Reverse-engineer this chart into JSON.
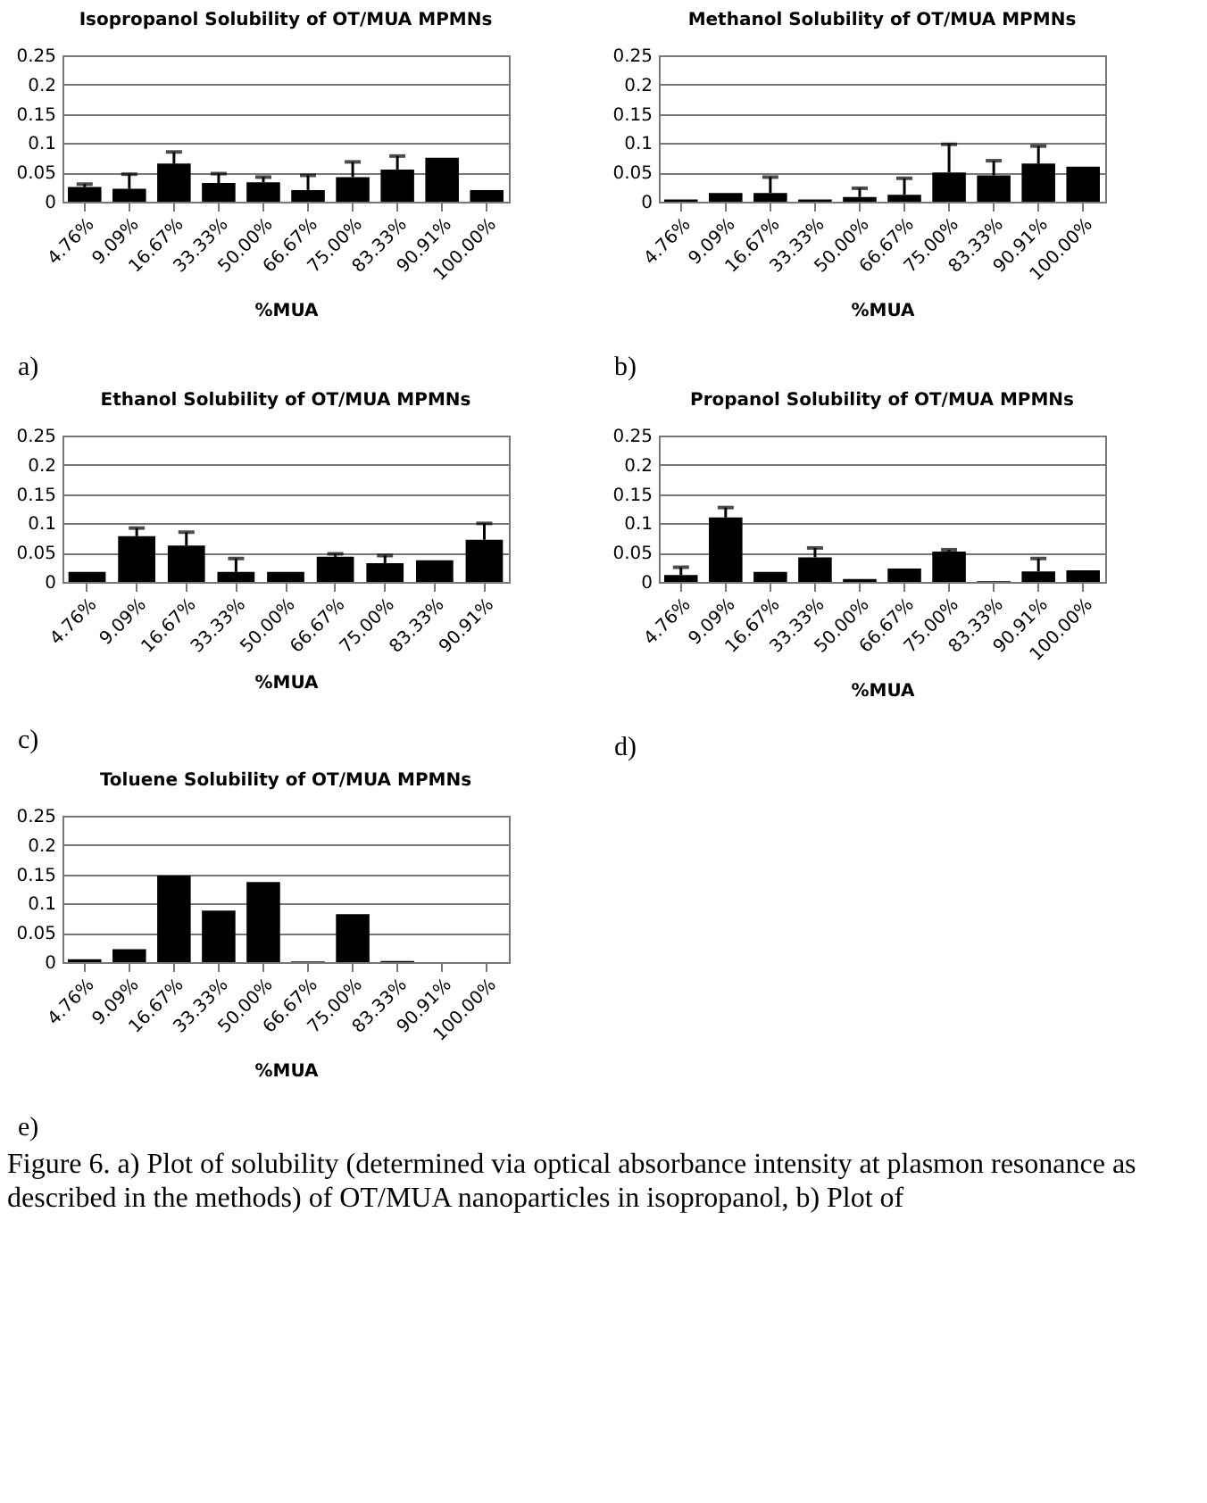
{
  "chart_data": [
    {
      "type": "bar",
      "title": "Isopropanol Solubility of OT/MUA MPMNs",
      "xlabel": "%MUA",
      "categories": [
        "4.76%",
        "9.09%",
        "16.67%",
        "33.33%",
        "50.00%",
        "66.67%",
        "75.00%",
        "83.33%",
        "90.91%",
        "100.00%"
      ],
      "color": "#000000",
      "values": [
        0.025,
        0.022,
        0.065,
        0.032,
        0.033,
        0.02,
        0.042,
        0.055,
        0.075,
        0.02
      ],
      "errors": [
        [
          0.025,
          0.03
        ],
        [
          0.022,
          0.047
        ],
        [
          0.065,
          0.085
        ],
        [
          0.032,
          0.048
        ],
        [
          0.033,
          0.042
        ],
        [
          0.02,
          0.045
        ],
        [
          0.042,
          0.068
        ],
        [
          0.055,
          0.078
        ],
        null,
        null
      ],
      "ylim": [
        0,
        0.25
      ],
      "yticks": [
        0,
        0.05,
        0.1,
        0.15,
        0.2,
        0.25
      ],
      "grid": "y",
      "annotations": [
        "a)"
      ]
    },
    {
      "type": "bar",
      "title": "Methanol Solubility of OT/MUA MPMNs",
      "xlabel": "%MUA",
      "categories": [
        "4.76%",
        "9.09%",
        "16.67%",
        "33.33%",
        "50.00%",
        "66.67%",
        "75.00%",
        "83.33%",
        "90.91%",
        "100.00%"
      ],
      "color": "#000000",
      "values": [
        0.004,
        0.015,
        0.015,
        0.004,
        0.008,
        0.012,
        0.05,
        0.045,
        0.065,
        0.06
      ],
      "errors": [
        null,
        null,
        [
          0.015,
          0.042
        ],
        null,
        [
          0.008,
          0.023
        ],
        [
          0.012,
          0.04
        ],
        [
          0.05,
          0.098
        ],
        [
          0.045,
          0.07
        ],
        [
          0.065,
          0.095
        ],
        null
      ],
      "ylim": [
        0,
        0.25
      ],
      "yticks": [
        0,
        0.05,
        0.1,
        0.15,
        0.2,
        0.25
      ],
      "grid": "y",
      "annotations": [
        "b)"
      ]
    },
    {
      "type": "bar",
      "title": "Ethanol Solubility of OT/MUA MPMNs",
      "xlabel": "%MUA",
      "categories": [
        "4.76%",
        "9.09%",
        "16.67%",
        "33.33%",
        "50.00%",
        "66.67%",
        "75.00%",
        "83.33%",
        "90.91%"
      ],
      "color": "#000000",
      "values": [
        0.017,
        0.078,
        0.062,
        0.017,
        0.017,
        0.043,
        0.032,
        0.037,
        0.072
      ],
      "errors": [
        null,
        [
          0.078,
          0.092
        ],
        [
          0.062,
          0.085
        ],
        [
          0.017,
          0.04
        ],
        null,
        [
          0.043,
          0.048
        ],
        [
          0.032,
          0.045
        ],
        null,
        [
          0.072,
          0.1
        ]
      ],
      "ylim": [
        0,
        0.25
      ],
      "yticks": [
        0,
        0.05,
        0.1,
        0.15,
        0.2,
        0.25
      ],
      "grid": "y",
      "annotations": [
        "c)"
      ]
    },
    {
      "type": "bar",
      "title": "Propanol Solubility of OT/MUA MPMNs",
      "xlabel": "%MUA",
      "categories": [
        "4.76%",
        "9.09%",
        "16.67%",
        "33.33%",
        "50.00%",
        "66.67%",
        "75.00%",
        "83.33%",
        "90.91%",
        "100.00%"
      ],
      "color": "#000000",
      "values": [
        0.012,
        0.11,
        0.017,
        0.042,
        0.005,
        0.023,
        0.052,
        0.001,
        0.018,
        0.02
      ],
      "errors": [
        [
          0.012,
          0.025
        ],
        [
          0.11,
          0.127
        ],
        null,
        [
          0.042,
          0.058
        ],
        null,
        null,
        [
          0.052,
          0.055
        ],
        null,
        [
          0.018,
          0.04
        ],
        null
      ],
      "ylim": [
        0,
        0.25
      ],
      "yticks": [
        0,
        0.05,
        0.1,
        0.15,
        0.2,
        0.25
      ],
      "grid": "y",
      "annotations": [
        "d)"
      ]
    },
    {
      "type": "bar",
      "title": "Toluene Solubility of OT/MUA MPMNs",
      "xlabel": "%MUA",
      "categories": [
        "4.76%",
        "9.09%",
        "16.67%",
        "33.33%",
        "50.00%",
        "66.67%",
        "75.00%",
        "83.33%",
        "90.91%",
        "100.00%"
      ],
      "color": "#000000",
      "values": [
        0.005,
        0.022,
        0.148,
        0.088,
        0.137,
        0.001,
        0.082,
        0.002,
        0,
        0
      ],
      "ylim": [
        0,
        0.25
      ],
      "yticks": [
        0,
        0.05,
        0.1,
        0.15,
        0.2,
        0.25
      ],
      "grid": "y",
      "annotations": [
        "e)",
        "Figure 6. a) Plot of solubility (determined via optical absorbance intensity at plasmon resonance as described in the methods) of OT/MUA nanoparticles in isopropanol, b) Plot of"
      ]
    }
  ]
}
